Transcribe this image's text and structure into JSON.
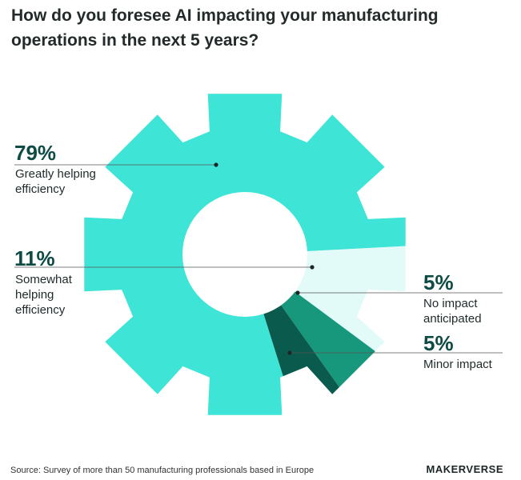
{
  "title": "How do you foresee AI impacting your manufacturing operations in the next 5 years?",
  "source": "Source: Survey of more than 50 manufacturing professionals based in Europe",
  "brand": "MAKERVERSE",
  "colors": {
    "greatly": "#3ee4d6",
    "somewhat": "#e2fbf8",
    "no_impact": "#17987c",
    "minor": "#0b5a4e",
    "leader": "#555555"
  },
  "chart_data": {
    "type": "pie",
    "style": "gear-shaped donut",
    "title": "How do you foresee AI impacting your manufacturing operations in the next 5 years?",
    "slices": [
      {
        "label": "Greatly helping efficiency",
        "value": 79,
        "display": "79%",
        "color": "#3ee4d6"
      },
      {
        "label": "Somewhat helping efficiency",
        "value": 11,
        "display": "11%",
        "color": "#e2fbf8"
      },
      {
        "label": "No impact anticipated",
        "value": 5,
        "display": "5%",
        "color": "#17987c"
      },
      {
        "label": "Minor impact",
        "value": 5,
        "display": "5%",
        "color": "#0b5a4e"
      }
    ]
  },
  "labels": {
    "greatly": {
      "pct": "79%",
      "lines": [
        "Greatly helping",
        "efficiency"
      ]
    },
    "somewhat": {
      "pct": "11%",
      "lines": [
        "Somewhat",
        "helping",
        "efficiency"
      ]
    },
    "no_impact": {
      "pct": "5%",
      "lines": [
        "No impact",
        "anticipated"
      ]
    },
    "minor": {
      "pct": "5%",
      "lines": [
        "Minor impact"
      ]
    }
  }
}
